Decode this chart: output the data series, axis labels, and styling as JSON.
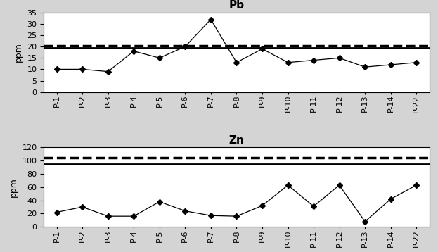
{
  "categories": [
    "P-1",
    "P-2",
    "P-3",
    "P-4",
    "P-5",
    "P-6",
    "P-7",
    "P-8",
    "P-9",
    "P-10",
    "P-11",
    "P-12",
    "P-13",
    "P-14",
    "P-22"
  ],
  "pb_values": [
    10,
    10,
    9,
    18,
    15,
    20,
    32,
    13,
    19,
    13,
    14,
    15,
    11,
    12,
    13
  ],
  "pb_title": "Pb",
  "pb_ylabel": "ppm",
  "pb_ylim": [
    0,
    35
  ],
  "pb_yticks": [
    0,
    5,
    10,
    15,
    20,
    25,
    30,
    35
  ],
  "pb_solid_line": 19.5,
  "pb_dashed_line": 20.5,
  "zn_values": [
    22,
    30,
    16,
    16,
    38,
    24,
    17,
    16,
    32,
    63,
    31,
    63,
    8,
    42,
    63
  ],
  "zn_title": "Zn",
  "zn_ylabel": "ppm",
  "zn_ylim": [
    0,
    120
  ],
  "zn_yticks": [
    0,
    20,
    40,
    60,
    80,
    100,
    120
  ],
  "zn_solid_line": 95,
  "zn_dashed_line": 105,
  "line_color": "black",
  "marker": "D",
  "marker_color": "black",
  "marker_size": 4,
  "line_width": 0.9,
  "solid_lw": 2.0,
  "dashed_lw": 2.5,
  "title_fontsize": 11,
  "label_fontsize": 9,
  "tick_fontsize": 8,
  "bg_color": "#ffffff",
  "fig_bg_color": "#d4d4d4"
}
